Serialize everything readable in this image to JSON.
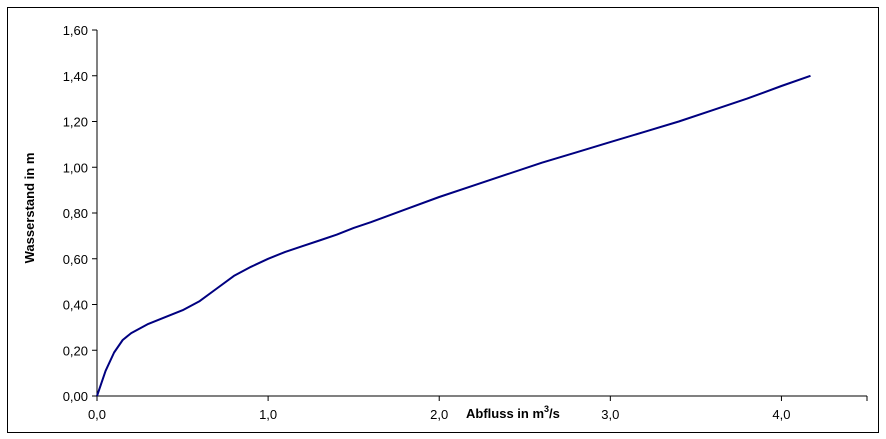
{
  "chart_data": {
    "type": "line",
    "title": "",
    "xlabel": "Abfluss in m³/s",
    "ylabel": "Wasserstand in m",
    "xlim": [
      0,
      4.5
    ],
    "ylim": [
      0,
      1.6
    ],
    "x_ticks": [
      0,
      1,
      2,
      3,
      4
    ],
    "x_tick_labels": [
      "0,0",
      "1,0",
      "2,0",
      "3,0",
      "4,0"
    ],
    "y_ticks": [
      0,
      0.2,
      0.4,
      0.6,
      0.8,
      1.0,
      1.2,
      1.4,
      1.6
    ],
    "y_tick_labels": [
      "0,00",
      "0,20",
      "0,40",
      "0,60",
      "0,80",
      "1,00",
      "1,20",
      "1,40",
      "1,60"
    ],
    "grid": false,
    "legend": "none",
    "series_color": "#000080",
    "series": [
      {
        "x": [
          0,
          0.05,
          0.1,
          0.15,
          0.2,
          0.3,
          0.4,
          0.5,
          0.6,
          0.7,
          0.8,
          0.9,
          1.0,
          1.1,
          1.2,
          1.3,
          1.4,
          1.5,
          1.6,
          1.8,
          2.0,
          2.2,
          2.4,
          2.6,
          2.8,
          3.0,
          3.2,
          3.4,
          3.6,
          3.8,
          4.0,
          4.17
        ],
        "values": [
          0,
          0.11,
          0.19,
          0.245,
          0.275,
          0.315,
          0.345,
          0.375,
          0.415,
          0.47,
          0.525,
          0.565,
          0.6,
          0.63,
          0.655,
          0.68,
          0.705,
          0.735,
          0.76,
          0.815,
          0.87,
          0.92,
          0.97,
          1.02,
          1.065,
          1.11,
          1.155,
          1.2,
          1.25,
          1.3,
          1.355,
          1.4
        ]
      }
    ]
  }
}
